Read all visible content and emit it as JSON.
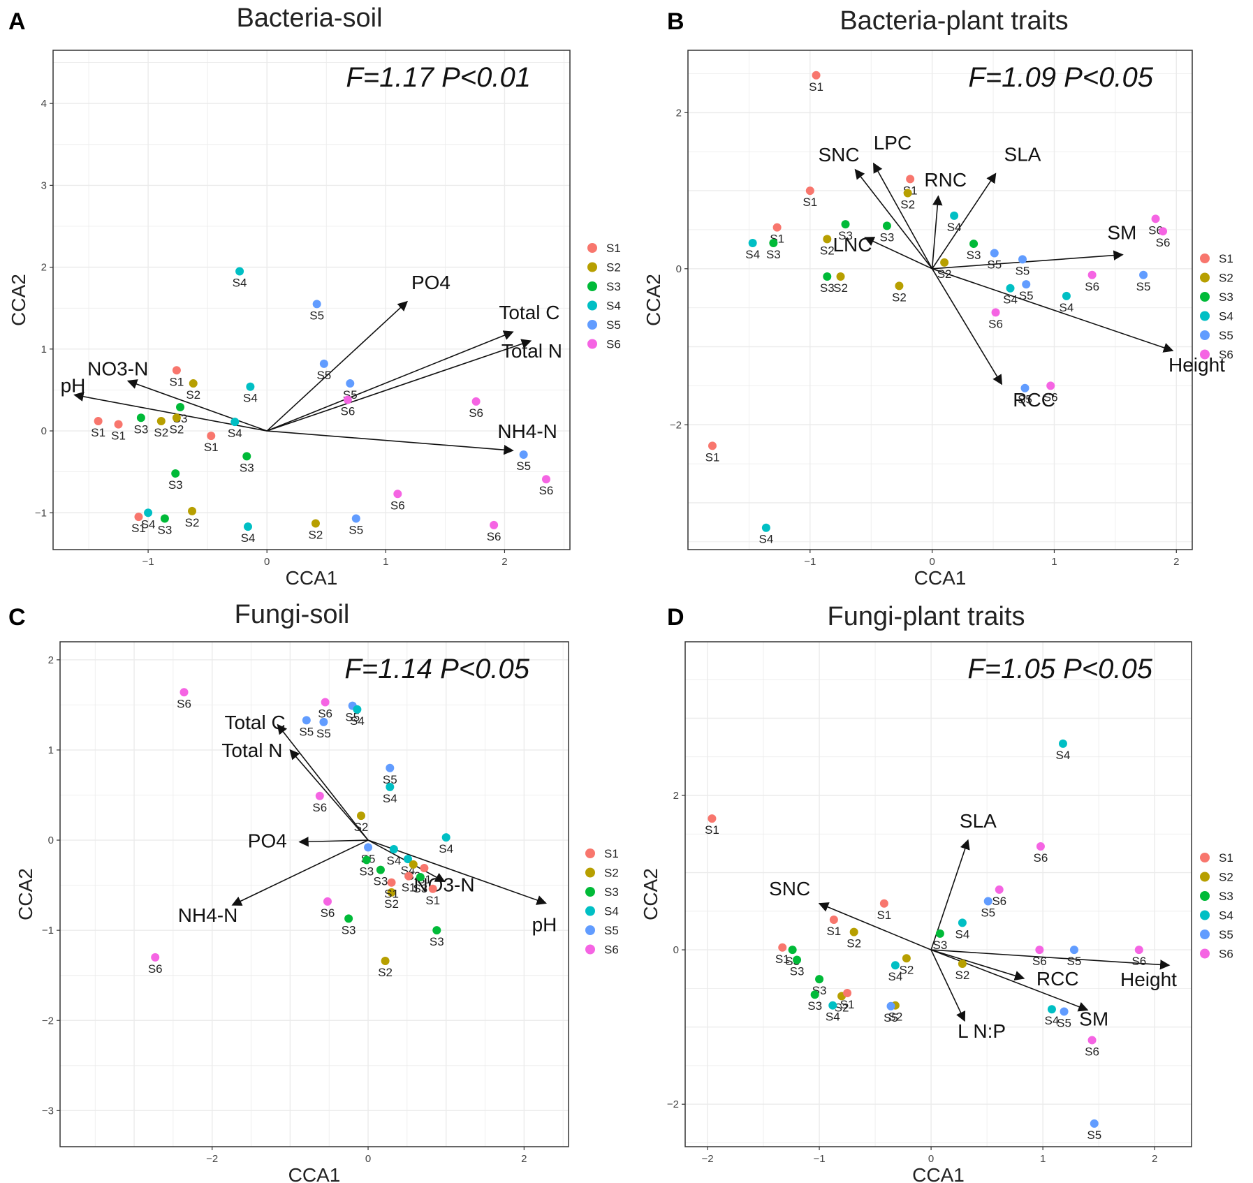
{
  "colors": {
    "S1": "#F8766D",
    "S2": "#B79F00",
    "S3": "#00BA38",
    "S4": "#00BFC4",
    "S5": "#619CFF",
    "S6": "#F564E3",
    "arrow": "#111111",
    "grid": "#ebebeb",
    "frame": "#333333"
  },
  "legend_entries": [
    "S1",
    "S2",
    "S3",
    "S4",
    "S5",
    "S6"
  ],
  "chart_data": [
    {
      "panel_letter": "A",
      "type": "scatter",
      "title": "Bacteria-soil",
      "stat_label": "F=1.17 P<0.01",
      "xlabel": "CCA1",
      "ylabel": "CCA2",
      "xlim": [
        -1.8,
        2.55
      ],
      "ylim": [
        -1.45,
        4.65
      ],
      "xticks": [
        -1,
        0,
        1,
        2
      ],
      "yticks": [
        -1,
        0,
        1,
        2,
        3,
        4
      ],
      "points": [
        {
          "group": "S4",
          "x": -0.23,
          "y": 1.95
        },
        {
          "group": "S5",
          "x": 0.42,
          "y": 1.55
        },
        {
          "group": "S5",
          "x": 0.48,
          "y": 0.82
        },
        {
          "group": "S5",
          "x": 0.7,
          "y": 0.58
        },
        {
          "group": "S6",
          "x": 0.68,
          "y": 0.38
        },
        {
          "group": "S1",
          "x": -0.76,
          "y": 0.74
        },
        {
          "group": "S2",
          "x": -0.62,
          "y": 0.58
        },
        {
          "group": "S4",
          "x": -0.14,
          "y": 0.54
        },
        {
          "group": "S3",
          "x": -0.73,
          "y": 0.29
        },
        {
          "group": "S1",
          "x": -1.42,
          "y": 0.12
        },
        {
          "group": "S1",
          "x": -1.25,
          "y": 0.08
        },
        {
          "group": "S3",
          "x": -1.06,
          "y": 0.16
        },
        {
          "group": "S2",
          "x": -0.89,
          "y": 0.12
        },
        {
          "group": "S2",
          "x": -0.76,
          "y": 0.16
        },
        {
          "group": "S4",
          "x": -0.27,
          "y": 0.11
        },
        {
          "group": "S1",
          "x": -0.47,
          "y": -0.06
        },
        {
          "group": "S3",
          "x": -0.17,
          "y": -0.31
        },
        {
          "group": "S6",
          "x": 1.76,
          "y": 0.36
        },
        {
          "group": "S5",
          "x": 2.16,
          "y": -0.29
        },
        {
          "group": "S6",
          "x": 2.35,
          "y": -0.59
        },
        {
          "group": "S3",
          "x": -0.77,
          "y": -0.52
        },
        {
          "group": "S6",
          "x": 1.1,
          "y": -0.77
        },
        {
          "group": "S4",
          "x": -1.0,
          "y": -1.0
        },
        {
          "group": "S2",
          "x": -0.63,
          "y": -0.98
        },
        {
          "group": "S1",
          "x": -1.08,
          "y": -1.05
        },
        {
          "group": "S3",
          "x": -0.86,
          "y": -1.07
        },
        {
          "group": "S4",
          "x": -0.16,
          "y": -1.17
        },
        {
          "group": "S2",
          "x": 0.41,
          "y": -1.13
        },
        {
          "group": "S5",
          "x": 0.75,
          "y": -1.07
        },
        {
          "group": "S6",
          "x": 1.91,
          "y": -1.15
        }
      ],
      "arrows": [
        {
          "label": "PO4",
          "x": 1.18,
          "y": 1.58
        },
        {
          "label": "Total C",
          "x": 2.07,
          "y": 1.21
        },
        {
          "label": "Total N",
          "x": 2.22,
          "y": 1.1
        },
        {
          "label": "NH4-N",
          "x": 2.07,
          "y": -0.24
        },
        {
          "label": "NO3-N",
          "x": -1.17,
          "y": 0.61
        },
        {
          "label": "pH",
          "x": -1.62,
          "y": 0.44
        }
      ]
    },
    {
      "panel_letter": "B",
      "type": "scatter",
      "title": "Bacteria-plant traits",
      "stat_label": "F=1.09 P<0.05",
      "xlabel": "CCA1",
      "ylabel": "CCA2",
      "xlim": [
        -2.0,
        2.13
      ],
      "ylim": [
        -3.6,
        2.8
      ],
      "xticks": [
        -1,
        0,
        1,
        2
      ],
      "yticks": [
        -2,
        0,
        2
      ],
      "points": [
        {
          "group": "S1",
          "x": -0.95,
          "y": 2.48
        },
        {
          "group": "S1",
          "x": -0.18,
          "y": 1.15
        },
        {
          "group": "S2",
          "x": -0.2,
          "y": 0.97
        },
        {
          "group": "S1",
          "x": -1.0,
          "y": 1.0
        },
        {
          "group": "S4",
          "x": 0.18,
          "y": 0.68
        },
        {
          "group": "S1",
          "x": -1.27,
          "y": 0.53
        },
        {
          "group": "S3",
          "x": -1.3,
          "y": 0.33
        },
        {
          "group": "S4",
          "x": -1.47,
          "y": 0.33
        },
        {
          "group": "S3",
          "x": -0.71,
          "y": 0.57
        },
        {
          "group": "S3",
          "x": -0.37,
          "y": 0.55
        },
        {
          "group": "S2",
          "x": -0.86,
          "y": 0.38
        },
        {
          "group": "S2",
          "x": 0.1,
          "y": 0.08
        },
        {
          "group": "S3",
          "x": -0.86,
          "y": -0.1
        },
        {
          "group": "S2",
          "x": -0.75,
          "y": -0.1
        },
        {
          "group": "S2",
          "x": -0.27,
          "y": -0.22
        },
        {
          "group": "S3",
          "x": 0.34,
          "y": 0.32
        },
        {
          "group": "S5",
          "x": 0.51,
          "y": 0.2
        },
        {
          "group": "S5",
          "x": 0.74,
          "y": 0.12
        },
        {
          "group": "S4",
          "x": 0.64,
          "y": -0.25
        },
        {
          "group": "S5",
          "x": 0.77,
          "y": -0.2
        },
        {
          "group": "S4",
          "x": 1.1,
          "y": -0.35
        },
        {
          "group": "S6",
          "x": 1.31,
          "y": -0.08
        },
        {
          "group": "S6",
          "x": 0.52,
          "y": -0.56
        },
        {
          "group": "S5",
          "x": 1.73,
          "y": -0.08
        },
        {
          "group": "S6",
          "x": 1.83,
          "y": 0.64
        },
        {
          "group": "S6",
          "x": 1.89,
          "y": 0.48
        },
        {
          "group": "S5",
          "x": 0.76,
          "y": -1.53
        },
        {
          "group": "S6",
          "x": 0.97,
          "y": -1.5
        },
        {
          "group": "S1",
          "x": -1.8,
          "y": -2.27
        },
        {
          "group": "S4",
          "x": -1.36,
          "y": -3.32
        }
      ],
      "arrows": [
        {
          "label": "SNC",
          "x": -0.63,
          "y": 1.27
        },
        {
          "label": "LPC",
          "x": -0.48,
          "y": 1.35
        },
        {
          "label": "RNC",
          "x": 0.05,
          "y": 0.93
        },
        {
          "label": "SLA",
          "x": 0.52,
          "y": 1.22
        },
        {
          "label": "LNC",
          "x": -0.55,
          "y": 0.4
        },
        {
          "label": "SM",
          "x": 1.56,
          "y": 0.18
        },
        {
          "label": "Height",
          "x": 1.97,
          "y": -1.05
        },
        {
          "label": "RCC",
          "x": 0.57,
          "y": -1.48
        }
      ]
    },
    {
      "panel_letter": "C",
      "type": "scatter",
      "title": "Fungi-soil",
      "stat_label": "F=1.14 P<0.05",
      "xlabel": "CCA1",
      "ylabel": "CCA2",
      "xlim": [
        -3.95,
        2.57
      ],
      "ylim": [
        -3.4,
        2.2
      ],
      "xticks": [
        -2,
        0,
        2
      ],
      "yticks": [
        -3,
        -2,
        -1,
        0,
        1,
        2
      ],
      "points": [
        {
          "group": "S6",
          "x": -2.36,
          "y": 1.64
        },
        {
          "group": "S6",
          "x": -0.55,
          "y": 1.53
        },
        {
          "group": "S5",
          "x": -0.2,
          "y": 1.49
        },
        {
          "group": "S4",
          "x": -0.14,
          "y": 1.45
        },
        {
          "group": "S5",
          "x": -0.79,
          "y": 1.33
        },
        {
          "group": "S5",
          "x": -0.57,
          "y": 1.31
        },
        {
          "group": "S5",
          "x": 0.28,
          "y": 0.8
        },
        {
          "group": "S4",
          "x": 0.28,
          "y": 0.59
        },
        {
          "group": "S6",
          "x": -0.62,
          "y": 0.49
        },
        {
          "group": "S2",
          "x": -0.09,
          "y": 0.27
        },
        {
          "group": "S4",
          "x": 1.0,
          "y": 0.03
        },
        {
          "group": "S5",
          "x": 0.0,
          "y": -0.08
        },
        {
          "group": "S4",
          "x": 0.33,
          "y": -0.1
        },
        {
          "group": "S3",
          "x": -0.02,
          "y": -0.22
        },
        {
          "group": "S3",
          "x": 0.16,
          "y": -0.33
        },
        {
          "group": "S4",
          "x": 0.51,
          "y": -0.21
        },
        {
          "group": "S2",
          "x": 0.58,
          "y": -0.27
        },
        {
          "group": "S1",
          "x": 0.72,
          "y": -0.31
        },
        {
          "group": "S2",
          "x": 0.3,
          "y": -0.58
        },
        {
          "group": "S1",
          "x": 0.3,
          "y": -0.47
        },
        {
          "group": "S1",
          "x": 0.52,
          "y": -0.4
        },
        {
          "group": "S3",
          "x": 0.67,
          "y": -0.41
        },
        {
          "group": "S1",
          "x": 0.83,
          "y": -0.54
        },
        {
          "group": "S6",
          "x": -0.52,
          "y": -0.68
        },
        {
          "group": "S3",
          "x": -0.25,
          "y": -0.87
        },
        {
          "group": "S3",
          "x": 0.88,
          "y": -1.0
        },
        {
          "group": "S2",
          "x": 0.22,
          "y": -1.34
        },
        {
          "group": "S6",
          "x": -2.73,
          "y": -1.3
        }
      ],
      "arrows": [
        {
          "label": "Total C",
          "x": -1.16,
          "y": 1.28
        },
        {
          "label": "Total N",
          "x": -1.0,
          "y": 1.0
        },
        {
          "label": "PO4",
          "x": -0.88,
          "y": -0.02
        },
        {
          "label": "NH4-N",
          "x": -1.74,
          "y": -0.72
        },
        {
          "label": "NO3-N",
          "x": 0.98,
          "y": -0.46
        },
        {
          "label": "pH",
          "x": 2.28,
          "y": -0.7
        }
      ]
    },
    {
      "panel_letter": "D",
      "type": "scatter",
      "title": "Fungi-plant traits",
      "stat_label": "F=1.05 P<0.05",
      "xlabel": "CCA1",
      "ylabel": "CCA2",
      "xlim": [
        -2.2,
        2.33
      ],
      "ylim": [
        -2.55,
        3.99
      ],
      "xticks": [
        -2,
        -1,
        0,
        1,
        2
      ],
      "yticks": [
        -2,
        0,
        2
      ],
      "points": [
        {
          "group": "S4",
          "x": 1.18,
          "y": 2.67
        },
        {
          "group": "S1",
          "x": -1.96,
          "y": 1.7
        },
        {
          "group": "S6",
          "x": 0.98,
          "y": 1.34
        },
        {
          "group": "S6",
          "x": 0.61,
          "y": 0.78
        },
        {
          "group": "S5",
          "x": 0.51,
          "y": 0.63
        },
        {
          "group": "S1",
          "x": -0.42,
          "y": 0.6
        },
        {
          "group": "S1",
          "x": -0.87,
          "y": 0.39
        },
        {
          "group": "S4",
          "x": 0.28,
          "y": 0.35
        },
        {
          "group": "S2",
          "x": -0.69,
          "y": 0.23
        },
        {
          "group": "S3",
          "x": 0.08,
          "y": 0.21
        },
        {
          "group": "S6",
          "x": 0.97,
          "y": 0.0
        },
        {
          "group": "S5",
          "x": 1.28,
          "y": 0.0
        },
        {
          "group": "S6",
          "x": 1.86,
          "y": 0.0
        },
        {
          "group": "S1",
          "x": -1.33,
          "y": 0.03
        },
        {
          "group": "S3",
          "x": -1.24,
          "y": 0.0
        },
        {
          "group": "S3",
          "x": -1.2,
          "y": -0.13
        },
        {
          "group": "S2",
          "x": -0.22,
          "y": -0.11
        },
        {
          "group": "S4",
          "x": -0.32,
          "y": -0.2
        },
        {
          "group": "S2",
          "x": 0.28,
          "y": -0.18
        },
        {
          "group": "S3",
          "x": -1.0,
          "y": -0.38
        },
        {
          "group": "S3",
          "x": -1.04,
          "y": -0.58
        },
        {
          "group": "S2",
          "x": -0.8,
          "y": -0.6
        },
        {
          "group": "S1",
          "x": -0.75,
          "y": -0.56
        },
        {
          "group": "S4",
          "x": -0.88,
          "y": -0.72
        },
        {
          "group": "S2",
          "x": -0.32,
          "y": -0.72
        },
        {
          "group": "S5",
          "x": -0.36,
          "y": -0.73
        },
        {
          "group": "S4",
          "x": 1.08,
          "y": -0.77
        },
        {
          "group": "S5",
          "x": 1.19,
          "y": -0.8
        },
        {
          "group": "S6",
          "x": 1.44,
          "y": -1.17
        },
        {
          "group": "S5",
          "x": 1.46,
          "y": -2.25
        }
      ],
      "arrows": [
        {
          "label": "SLA",
          "x": 0.33,
          "y": 1.42
        },
        {
          "label": "SNC",
          "x": -1.0,
          "y": 0.6
        },
        {
          "label": "RCC",
          "x": 0.83,
          "y": -0.37
        },
        {
          "label": "Height",
          "x": 2.13,
          "y": -0.2
        },
        {
          "label": "SM",
          "x": 1.4,
          "y": -0.78
        },
        {
          "label": "L N:P",
          "x": 0.3,
          "y": -0.92
        }
      ]
    }
  ]
}
